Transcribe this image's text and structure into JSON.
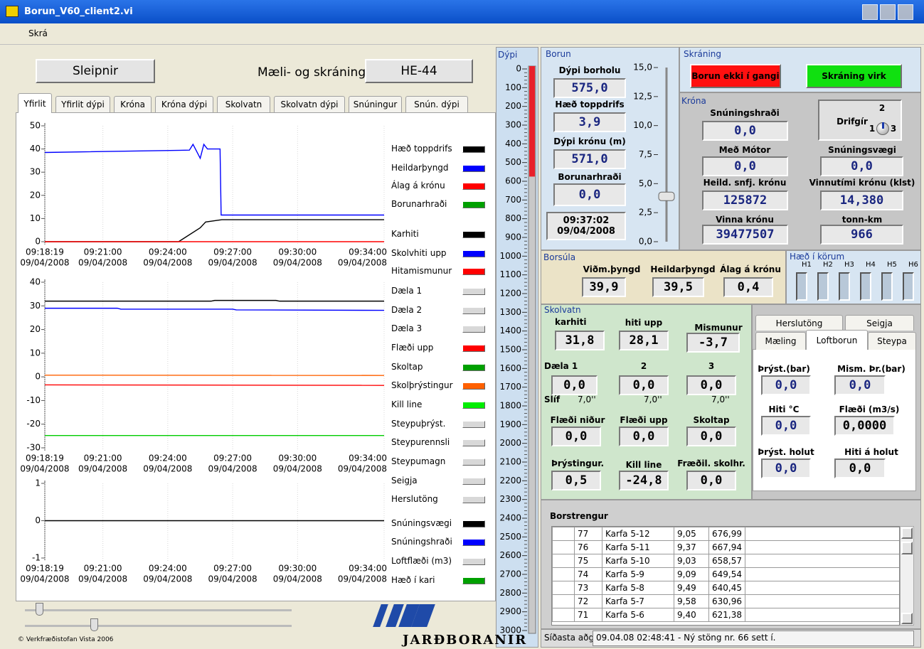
{
  "window": {
    "title": "Borun_V60_client2.vi",
    "menu": [
      "Skrá"
    ]
  },
  "header": {
    "rig": "Sleipnir",
    "title": "Mæli- og skráningakerfi",
    "unit": "HE-44"
  },
  "tabs": {
    "items": [
      "Yfirlit",
      "Yfirlit dýpi",
      "Króna",
      "Króna dýpi",
      "Skolvatn",
      "Skolvatn dýpi",
      "Snúningur",
      "Snún. dýpi"
    ],
    "active": 0
  },
  "charts": [
    {
      "type": "line",
      "ylim": [
        0,
        50
      ],
      "yticks": [
        0,
        10,
        20,
        30,
        40,
        50
      ],
      "xlim": [
        "09:18:19",
        "09:34:00"
      ],
      "xticks": [
        {
          "time": "09:18:19",
          "date": "09/04/2008"
        },
        {
          "time": "09:21:00",
          "date": "09/04/2008"
        },
        {
          "time": "09:24:00",
          "date": "09/04/2008"
        },
        {
          "time": "09:27:00",
          "date": "09/04/2008"
        },
        {
          "time": "09:30:00",
          "date": "09/04/2008"
        },
        {
          "time": "09:34:00",
          "date": "09/04/2008"
        }
      ],
      "series": [
        {
          "color": "#0000ff",
          "x": [
            "09:18:19",
            "09:25:00",
            "09:25:10",
            "09:25:20",
            "09:25:30",
            "09:25:40",
            "09:25:50",
            "09:26:25",
            "09:26:28",
            "09:34:00"
          ],
          "values": [
            38.5,
            39.5,
            42,
            39,
            36,
            42,
            40,
            40,
            11.5,
            11.5
          ]
        },
        {
          "color": "#000000",
          "x": [
            "09:18:19",
            "09:24:30",
            "09:25:30",
            "09:25:45",
            "09:26:30",
            "09:34:00"
          ],
          "values": [
            0,
            0,
            6,
            8.5,
            9.5,
            9.5
          ]
        },
        {
          "color": "#ff0000",
          "x": [
            "09:18:19",
            "09:34:00"
          ],
          "values": [
            0,
            0
          ]
        }
      ]
    },
    {
      "type": "line",
      "ylim": [
        -30,
        40
      ],
      "yticks": [
        -30,
        -20,
        -10,
        0,
        10,
        20,
        30,
        40
      ],
      "xlim": [
        "09:18:19",
        "09:34:00"
      ],
      "xticks": [
        {
          "time": "09:18:19",
          "date": "09/04/2008"
        },
        {
          "time": "09:21:00",
          "date": "09/04/2008"
        },
        {
          "time": "09:24:00",
          "date": "09/04/2008"
        },
        {
          "time": "09:27:00",
          "date": "09/04/2008"
        },
        {
          "time": "09:30:00",
          "date": "09/04/2008"
        },
        {
          "time": "09:34:00",
          "date": "09/04/2008"
        }
      ],
      "series": [
        {
          "color": "#000000",
          "x": [
            "09:18:19",
            "09:26:00",
            "09:26:10",
            "09:29:00",
            "09:29:10",
            "09:34:00"
          ],
          "values": [
            32,
            32,
            32.3,
            32.3,
            32,
            32
          ]
        },
        {
          "color": "#0000ff",
          "x": [
            "09:18:19",
            "09:21:40",
            "09:21:50",
            "09:27:00",
            "09:27:10",
            "09:34:00"
          ],
          "values": [
            29,
            29,
            28.6,
            28.6,
            28.3,
            28.1
          ]
        },
        {
          "color": "#ff6000",
          "x": [
            "09:18:19",
            "09:34:00"
          ],
          "values": [
            0.7,
            0.6
          ]
        },
        {
          "color": "#ff0000",
          "x": [
            "09:18:19",
            "09:34:00"
          ],
          "values": [
            -3.4,
            -3.6
          ]
        },
        {
          "color": "#00cc00",
          "x": [
            "09:18:19",
            "09:34:00"
          ],
          "values": [
            -24.8,
            -24.8
          ]
        }
      ]
    },
    {
      "type": "line",
      "ylim": [
        -1,
        1
      ],
      "yticks": [
        -1,
        0,
        1
      ],
      "xlim": [
        "09:18:19",
        "09:34:00"
      ],
      "xticks": [
        {
          "time": "09:18:19",
          "date": "09/04/2008"
        },
        {
          "time": "09:21:00",
          "date": "09/04/2008"
        },
        {
          "time": "09:24:00",
          "date": "09/04/2008"
        },
        {
          "time": "09:27:00",
          "date": "09/04/2008"
        },
        {
          "time": "09:30:00",
          "date": "09/04/2008"
        },
        {
          "time": "09:34:00",
          "date": "09/04/2008"
        }
      ],
      "series": [
        {
          "color": "#000000",
          "x": [
            "09:18:19",
            "09:34:00"
          ],
          "values": [
            0,
            0
          ]
        }
      ]
    }
  ],
  "legend": [
    {
      "name": "Hæð toppdrifs",
      "color": "#000000"
    },
    {
      "name": "Heildarþyngd",
      "color": "#0000ff"
    },
    {
      "name": "Álag á krónu",
      "color": "#ff0000"
    },
    {
      "name": "Borunarhraði",
      "color": "#00a000"
    },
    {
      "name": "Karhiti",
      "color": "#000000"
    },
    {
      "name": "Skolvhiti upp",
      "color": "#0000ff"
    },
    {
      "name": "Hitamismunur",
      "color": "#ff0000"
    },
    {
      "name": "Dæla 1",
      "color": "#d8d8d8"
    },
    {
      "name": "Dæla 2",
      "color": "#d8d8d8"
    },
    {
      "name": "Dæla 3",
      "color": "#d8d8d8"
    },
    {
      "name": "Flæði upp",
      "color": "#ff0000"
    },
    {
      "name": "Skoltap",
      "color": "#00a000"
    },
    {
      "name": "Skolþrýstingur",
      "color": "#ff6000"
    },
    {
      "name": "Kill line",
      "color": "#00ee00"
    },
    {
      "name": "Steypuþrýst.",
      "color": "#d8d8d8"
    },
    {
      "name": "Steypurennsli",
      "color": "#d8d8d8"
    },
    {
      "name": "Steypumagn",
      "color": "#d8d8d8"
    },
    {
      "name": "Seigja",
      "color": "#d8d8d8"
    },
    {
      "name": "Herslutöng",
      "color": "#d8d8d8"
    },
    {
      "name": "Snúningsvægi",
      "color": "#000000"
    },
    {
      "name": "Snúningshraði",
      "color": "#0000ff"
    },
    {
      "name": "Loftflæði (m3)",
      "color": "#d8d8d8"
    },
    {
      "name": "Hæð í kari",
      "color": "#00a000"
    }
  ],
  "footer": {
    "copyright": "© Verkfræðistofan Vista 2006",
    "logo": "JARÐBORANIR"
  },
  "depth": {
    "label": "Dýpi",
    "ticks": [
      0,
      100,
      200,
      300,
      400,
      500,
      600,
      700,
      800,
      900,
      1000,
      1100,
      1200,
      1300,
      1400,
      1500,
      1600,
      1700,
      1800,
      1900,
      2000,
      2100,
      2200,
      2300,
      2400,
      2500,
      2600,
      2700,
      2800,
      2900,
      3000
    ],
    "value": 575
  },
  "borun": {
    "label": "Borun",
    "fields": [
      {
        "label": "Dýpi borholu",
        "value": "575,0"
      },
      {
        "label": "Hæð toppdrifs",
        "value": "3,9"
      },
      {
        "label": "Dýpi krónu (m)",
        "value": "571,0"
      },
      {
        "label": "Borunarhraði",
        "value": "0,0"
      }
    ],
    "time": "09:37:02",
    "date": "09/04/2008",
    "slider": {
      "ticks": [
        {
          "value": 0,
          "label": "0,0"
        },
        {
          "value": 2.5,
          "label": "2,5"
        },
        {
          "value": 5,
          "label": "5,0"
        },
        {
          "value": 7.5,
          "label": "7,5"
        },
        {
          "value": 10,
          "label": "10,0"
        },
        {
          "value": 12.5,
          "label": "12,5"
        },
        {
          "value": 15,
          "label": "15,0"
        }
      ],
      "value": 3.9
    }
  },
  "skraning": {
    "label": "Skráning",
    "buttons": [
      {
        "label": "Borun ekki í gangi",
        "color": "#ff1010"
      },
      {
        "label": "Skráning virk",
        "color": "#10e010"
      }
    ]
  },
  "krona": {
    "label": "Króna",
    "fields": [
      {
        "label": "Snúningshraði",
        "value": "0,0"
      },
      {
        "label": "Með Mótor",
        "value": "0,0"
      },
      {
        "label": "Snúningsvægi",
        "value": "0,0"
      },
      {
        "label": "Heild. snfj. krónu",
        "value": "125872"
      },
      {
        "label": "Vinnutími krónu (klst)",
        "value": "14,380"
      },
      {
        "label": "Vinna krónu",
        "value": "39477507"
      },
      {
        "label": "tonn-km",
        "value": "966"
      }
    ],
    "gear": {
      "label": "Drifgír",
      "positions": [
        "1",
        "2",
        "3"
      ]
    }
  },
  "borsula": {
    "label": "Borsúla",
    "fields": [
      {
        "label": "Viðm.þyngd",
        "value": "39,9"
      },
      {
        "label": "Heildarþyngd",
        "value": "39,5"
      },
      {
        "label": "Álag á krónu",
        "value": "0,4"
      }
    ]
  },
  "kor": {
    "label": "Hæð í körum",
    "tanks": [
      "H1",
      "H2",
      "H3",
      "H4",
      "H5",
      "H6"
    ]
  },
  "skolvatn": {
    "label": "Skolvatn",
    "fields": [
      {
        "label": "karhiti",
        "value": "31,8"
      },
      {
        "label": "hiti upp",
        "value": "28,1"
      },
      {
        "label": "Mismunur",
        "value": "-3,7"
      },
      {
        "label": "Dæla 1",
        "value": "0,0"
      },
      {
        "label": "2",
        "value": "0,0"
      },
      {
        "label": "3",
        "value": "0,0"
      },
      {
        "label": "Flæði niður",
        "value": "0,0"
      },
      {
        "label": "Flæði upp",
        "value": "0,0"
      },
      {
        "label": "Skoltap",
        "value": "0,0"
      },
      {
        "label": "Þrýstingur.",
        "value": "0,5"
      },
      {
        "label": "Kill line",
        "value": "-24,8"
      },
      {
        "label": "Fræðil. skolhr.",
        "value": "0,0"
      }
    ],
    "slif": {
      "label": "Slíf",
      "values": [
        "7,0''",
        "7,0''",
        "7,0''"
      ]
    }
  },
  "loftborun": {
    "tabs": [
      "Herslutöng",
      "Seigja",
      "Mæling",
      "Loftborun",
      "Steypa"
    ],
    "fields": [
      {
        "label": "Þrýst.(bar)",
        "value": "0,0"
      },
      {
        "label": "Mism. Þr.(bar)",
        "value": "0,0"
      },
      {
        "label": "Hiti °C",
        "value": "0,0"
      },
      {
        "label": "Flæði (m3/s)",
        "value": "0,0000"
      },
      {
        "label": "Þrýst. holut",
        "value": "0,0"
      },
      {
        "label": "Hiti á holut",
        "value": "0,0"
      }
    ]
  },
  "borstrengur": {
    "label": "Borstrengur",
    "rows": [
      [
        "77",
        "Karfa 5-12",
        "9,05",
        "676,99"
      ],
      [
        "76",
        "Karfa 5-11",
        "9,37",
        "667,94"
      ],
      [
        "75",
        "Karfa 5-10",
        "9,03",
        "658,57"
      ],
      [
        "74",
        "Karfa 5-9",
        "9,09",
        "649,54"
      ],
      [
        "73",
        "Karfa 5-8",
        "9,49",
        "640,45"
      ],
      [
        "72",
        "Karfa 5-7",
        "9,58",
        "630,96"
      ],
      [
        "71",
        "Karfa 5-6",
        "9,40",
        "621,38"
      ]
    ]
  },
  "status": {
    "label": "Síðasta aðgerð",
    "message": "09.04.08 02:48:41 - Ný stöng nr. 66 sett í."
  }
}
